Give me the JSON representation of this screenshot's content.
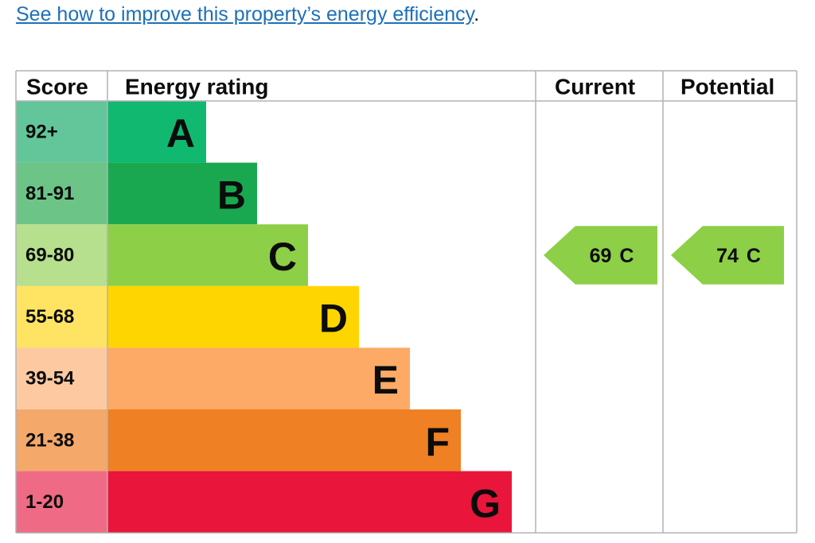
{
  "link": {
    "text": "See how to improve this property’s energy efficiency",
    "after": "."
  },
  "headers": [
    "Score",
    "Energy rating",
    "Current",
    "Potential"
  ],
  "bands": [
    {
      "score": "92+",
      "letter": "A",
      "color": "#10b870",
      "score_color": "#63c59a"
    },
    {
      "score": "81-91",
      "letter": "B",
      "color": "#19a84f",
      "score_color": "#6cc487"
    },
    {
      "score": "69-80",
      "letter": "C",
      "color": "#8dcf46",
      "score_color": "#b6df8e"
    },
    {
      "score": "55-68",
      "letter": "D",
      "color": "#ffd500",
      "score_color": "#ffe363"
    },
    {
      "score": "39-54",
      "letter": "E",
      "color": "#fcaa65",
      "score_color": "#fdc9a1"
    },
    {
      "score": "21-38",
      "letter": "F",
      "color": "#ef8023",
      "score_color": "#f4a86a"
    },
    {
      "score": "1-20",
      "letter": "G",
      "color": "#e9153b",
      "score_color": "#ef6b85"
    }
  ],
  "current": {
    "value": 69,
    "letter": "C"
  },
  "potential": {
    "value": 74,
    "letter": "C"
  }
}
